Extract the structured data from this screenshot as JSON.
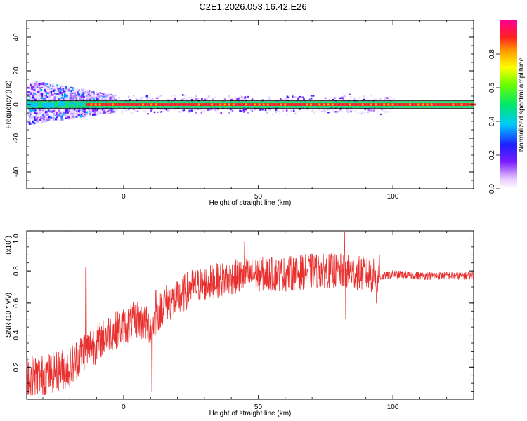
{
  "title": "C2E1.2026.053.16.42.E26",
  "chart_data": [
    {
      "type": "heatmap",
      "xlabel": "Height of straight line (km)",
      "ylabel": "Frequency (Hz)",
      "xlim": [
        -36,
        130
      ],
      "ylim": [
        -50,
        50
      ],
      "x_ticks": [
        0,
        50,
        100
      ],
      "y_ticks": [
        -40,
        -20,
        0,
        20,
        40
      ],
      "colorbar": {
        "label": "Normalized spectral amplitude",
        "range": [
          0,
          1
        ],
        "ticks": [
          0.0,
          0.2,
          0.4,
          0.6,
          0.8
        ],
        "tick_labels": [
          "0.0",
          "0.2",
          "0.4",
          "0.6",
          "0.8"
        ]
      },
      "description_points": {
        "signal_band_hz": [
          -2,
          2
        ],
        "strong_line_from_km": -14,
        "noise_region_km": [
          -36,
          -10
        ],
        "noise_extent_hz": [
          -10,
          18
        ]
      }
    },
    {
      "type": "line",
      "xlabel": "Height of straight line (km)",
      "ylabel": "SNR (10 * v/v)",
      "y_multiplier": "(x10",
      "y_multiplier_exp": "4",
      "y_multiplier_close": ")",
      "xlim": [
        -36,
        130
      ],
      "ylim": [
        0,
        1.05
      ],
      "x_ticks": [
        0,
        50,
        100
      ],
      "y_ticks": [
        0.2,
        0.4,
        0.6,
        0.8,
        1.0
      ],
      "y_tick_labels": [
        "0.2",
        "0.4",
        "0.6",
        "0.8",
        "1.0"
      ],
      "series": [
        {
          "color": "#e8302e",
          "trend_x": [
            -36,
            -30,
            -20,
            -15,
            -10,
            -5,
            0,
            5,
            10,
            15,
            20,
            25,
            30,
            40,
            50,
            60,
            70,
            80,
            90,
            95,
            100,
            110,
            120,
            130
          ],
          "trend_y": [
            0.15,
            0.15,
            0.2,
            0.3,
            0.35,
            0.42,
            0.45,
            0.5,
            0.45,
            0.6,
            0.62,
            0.7,
            0.72,
            0.76,
            0.78,
            0.78,
            0.8,
            0.8,
            0.78,
            0.76,
            0.78,
            0.77,
            0.77,
            0.77
          ],
          "spikes": [
            {
              "x": -14,
              "y": 0.82
            },
            {
              "x": 10.5,
              "y": 0.05
            },
            {
              "x": 12,
              "y": 0.68
            },
            {
              "x": 45,
              "y": 0.98
            },
            {
              "x": 82,
              "y": 1.05
            },
            {
              "x": 82.5,
              "y": 0.5
            },
            {
              "x": 94,
              "y": 0.6
            },
            {
              "x": 95,
              "y": 0.9
            }
          ]
        }
      ]
    }
  ]
}
